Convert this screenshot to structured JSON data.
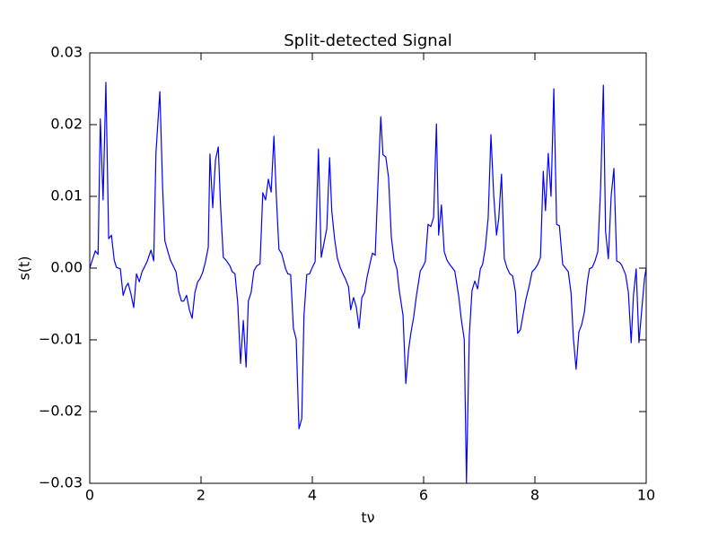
{
  "chart_data": {
    "type": "line",
    "title": "Split-detected Signal",
    "x_label": "tν",
    "y_label": "s(t)",
    "color": "#0000ff",
    "x": [
      0,
      0.1,
      0.15,
      0.19,
      0.24,
      0.29,
      0.34,
      0.39,
      0.44,
      0.48,
      0.55,
      0.6,
      0.65,
      0.69,
      0.74,
      0.79,
      0.84,
      0.89,
      0.94,
      0.98,
      1.03,
      1.1,
      1.15,
      1.19,
      1.26,
      1.31,
      1.35,
      1.4,
      1.45,
      1.5,
      1.55,
      1.6,
      1.65,
      1.69,
      1.74,
      1.79,
      1.84,
      1.89,
      1.94,
      1.98,
      2.03,
      2.08,
      2.13,
      2.16,
      2.21,
      2.26,
      2.31,
      2.35,
      2.4,
      2.45,
      2.52,
      2.56,
      2.61,
      2.66,
      2.71,
      2.76,
      2.81,
      2.85,
      2.9,
      2.95,
      3.0,
      3.06,
      3.11,
      3.16,
      3.21,
      3.26,
      3.31,
      3.35,
      3.4,
      3.45,
      3.52,
      3.56,
      3.61,
      3.66,
      3.71,
      3.76,
      3.81,
      3.85,
      3.9,
      3.95,
      4.0,
      4.05,
      4.11,
      4.16,
      4.21,
      4.26,
      4.31,
      4.35,
      4.4,
      4.45,
      4.5,
      4.55,
      4.6,
      4.65,
      4.69,
      4.74,
      4.79,
      4.84,
      4.89,
      4.94,
      4.98,
      5.03,
      5.08,
      5.13,
      5.18,
      5.23,
      5.27,
      5.32,
      5.37,
      5.42,
      5.47,
      5.52,
      5.56,
      5.63,
      5.68,
      5.73,
      5.77,
      5.82,
      5.87,
      5.94,
      5.98,
      6.03,
      6.08,
      6.13,
      6.18,
      6.23,
      6.27,
      6.32,
      6.37,
      6.42,
      6.47,
      6.52,
      6.56,
      6.63,
      6.68,
      6.73,
      6.77,
      6.82,
      6.87,
      6.92,
      6.97,
      7.02,
      7.06,
      7.11,
      7.16,
      7.21,
      7.26,
      7.31,
      7.35,
      7.4,
      7.45,
      7.5,
      7.55,
      7.6,
      7.65,
      7.69,
      7.74,
      7.79,
      7.84,
      7.9,
      7.95,
      8.0,
      8.05,
      8.1,
      8.15,
      8.19,
      8.24,
      8.29,
      8.34,
      8.39,
      8.44,
      8.5,
      8.55,
      8.6,
      8.65,
      8.69,
      8.74,
      8.79,
      8.84,
      8.89,
      8.94,
      8.98,
      9.03,
      9.08,
      9.13,
      9.18,
      9.23,
      9.27,
      9.32,
      9.37,
      9.42,
      9.47,
      9.52,
      9.56,
      9.63,
      9.68,
      9.73,
      9.77,
      9.82,
      9.87,
      9.92,
      9.97,
      10
    ],
    "values": [
      0,
      0.0024,
      0.0019,
      0.0208,
      0.0095,
      0.0259,
      0.0041,
      0.0046,
      0.0011,
      0.0001,
      -0.0001,
      -0.0038,
      -0.0026,
      -0.0021,
      -0.0036,
      -0.0055,
      -0.0008,
      -0.0019,
      -0.0005,
      0.0001,
      0.0009,
      0.0025,
      0.001,
      0.0161,
      0.0246,
      0.0111,
      0.0038,
      0.0024,
      0.0011,
      0.0003,
      -0.0005,
      -0.0033,
      -0.0046,
      -0.0046,
      -0.0038,
      -0.0058,
      -0.007,
      -0.0034,
      -0.0019,
      -0.0015,
      -0.0006,
      0.0009,
      0.0029,
      0.0159,
      0.0084,
      0.0151,
      0.0169,
      0.0088,
      0.0015,
      0.0011,
      0.0003,
      -0.0005,
      -0.0008,
      -0.0049,
      -0.0133,
      -0.0073,
      -0.0138,
      -0.0046,
      -0.0034,
      -0.0004,
      0.0003,
      0.0006,
      0.0105,
      0.0095,
      0.0124,
      0.0106,
      0.0184,
      0.0105,
      0.0026,
      0.002,
      -0.0001,
      -0.0008,
      -0.0009,
      -0.0084,
      -0.0099,
      -0.0224,
      -0.021,
      -0.0066,
      -0.0009,
      -0.0008,
      0.0001,
      0.0009,
      0.0166,
      0.0015,
      0.0035,
      0.0055,
      0.0154,
      0.0079,
      0.0041,
      0.0014,
      0.0001,
      -0.0008,
      -0.0016,
      -0.0026,
      -0.0058,
      -0.0041,
      -0.0054,
      -0.0084,
      -0.0041,
      -0.0034,
      -0.0014,
      0.0004,
      0.0021,
      0.0018,
      0.0119,
      0.0211,
      0.0158,
      0.0155,
      0.0126,
      0.0043,
      0.0011,
      -0.0001,
      -0.003,
      -0.0066,
      -0.0161,
      -0.0114,
      -0.0091,
      -0.0069,
      -0.0039,
      -0.0004,
      0.0001,
      0.0009,
      0.0061,
      0.0058,
      0.0071,
      0.0201,
      0.0046,
      0.0088,
      0.0023,
      0.0011,
      0.0005,
      0,
      -0.0004,
      -0.0039,
      -0.0073,
      -0.0099,
      -0.0299,
      -0.0095,
      -0.0031,
      -0.0018,
      -0.0029,
      -0.0001,
      0.0005,
      0.0029,
      0.007,
      0.0186,
      0.0101,
      0.0046,
      0.0069,
      0.0131,
      0.0013,
      0,
      -0.0008,
      -0.0011,
      -0.0033,
      -0.0091,
      -0.0086,
      -0.0064,
      -0.0043,
      -0.0024,
      -0.0005,
      -0.0001,
      0.0005,
      0.0015,
      0.0135,
      0.008,
      0.016,
      0.01,
      0.025,
      0.0061,
      0.0059,
      0.0005,
      0,
      -0.0005,
      -0.0035,
      -0.0096,
      -0.0141,
      -0.0089,
      -0.0079,
      -0.0061,
      -0.0021,
      -0.0001,
      0.0001,
      0.001,
      0.0023,
      0.011,
      0.0255,
      0.0051,
      0.0013,
      0.01,
      0.0139,
      0.001,
      0.0008,
      0.0004,
      -0.0009,
      -0.0034,
      -0.0104,
      -0.0039,
      -0.0001,
      -0.0104,
      -0.0058,
      -0.0014,
      0
    ],
    "xlim": [
      0,
      10
    ],
    "xticks": [
      0,
      2,
      4,
      6,
      8,
      10
    ],
    "ylim": [
      -0.03,
      0.03
    ],
    "yticks": [
      {
        "value": -0.03,
        "label": "−0.03"
      },
      {
        "value": -0.02,
        "label": "−0.02"
      },
      {
        "value": -0.01,
        "label": "−0.01"
      },
      {
        "value": 0,
        "label": "0.00"
      },
      0.01,
      0.02,
      0.03
    ],
    "grid": false
  }
}
